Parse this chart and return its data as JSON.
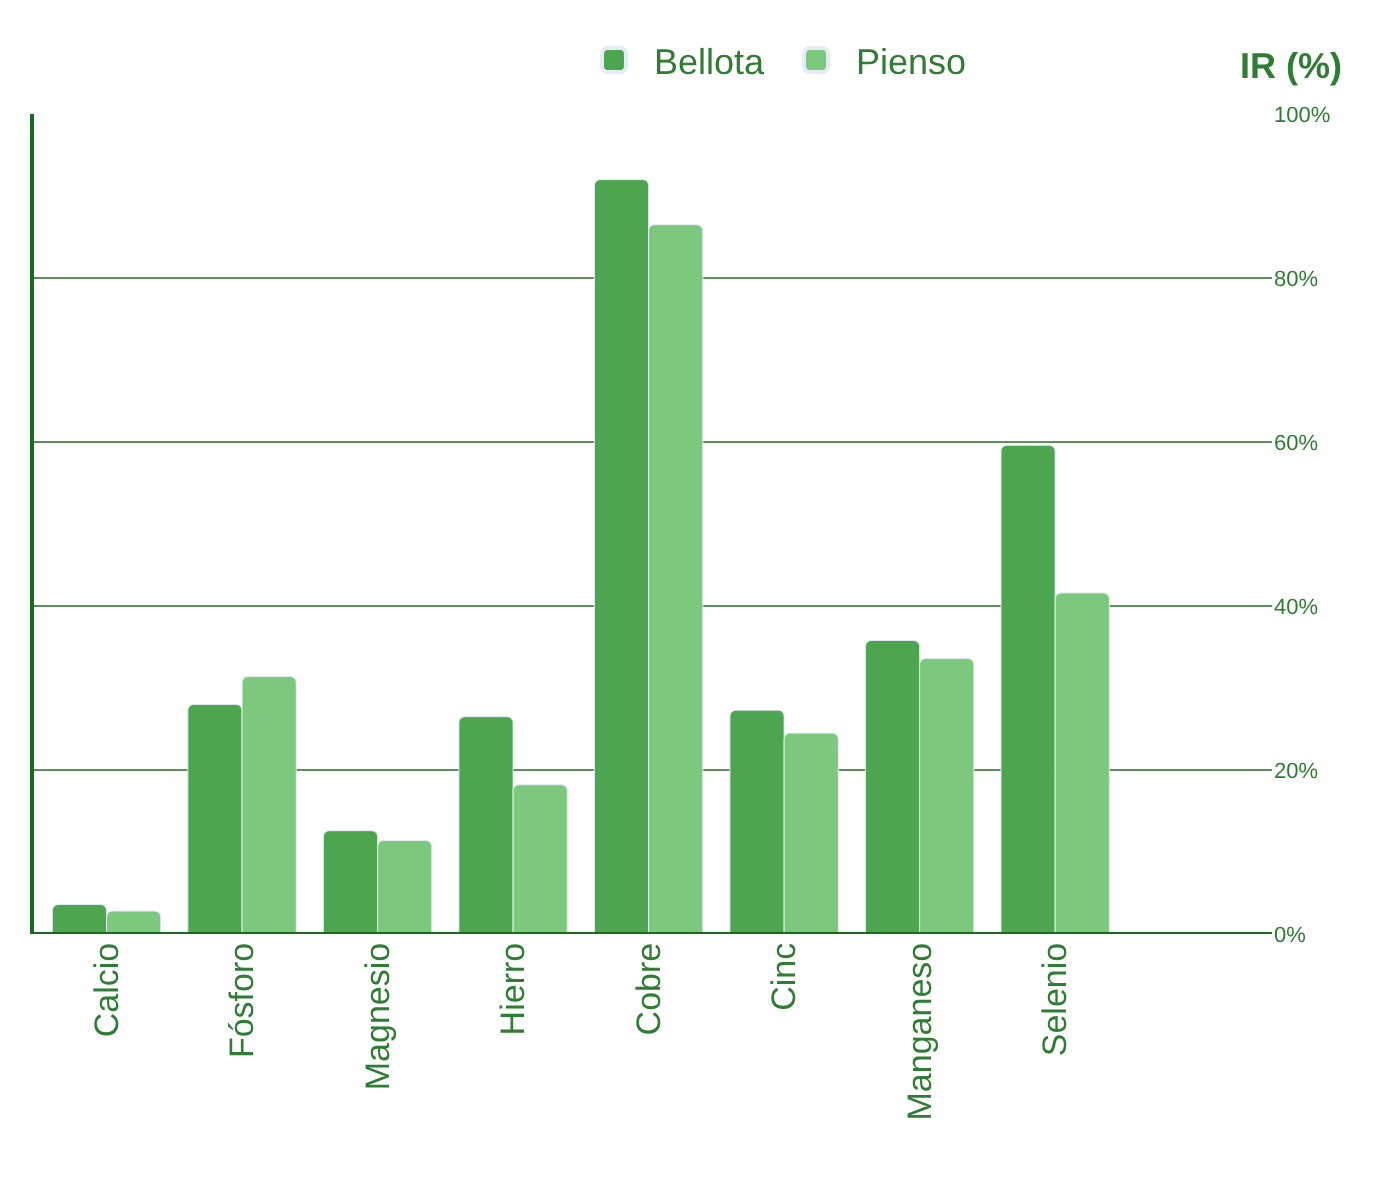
{
  "chart_data": {
    "type": "bar",
    "ylabel": "IR (%)",
    "categories": [
      "Calcio",
      "Fósforo",
      "Magnesio",
      "Hierro",
      "Cobre",
      "Cinc",
      "Manganeso",
      "Selenio"
    ],
    "series": [
      {
        "name": "Bellota",
        "color": "#4ea54f",
        "values": [
          3.6,
          28,
          12.6,
          26.5,
          92,
          27.3,
          35.8,
          59.6
        ]
      },
      {
        "name": "Pienso",
        "color": "#7cc87c",
        "values": [
          2.8,
          31.4,
          11.4,
          18.2,
          86.5,
          24.5,
          33.6,
          41.6
        ]
      }
    ],
    "ylim": [
      0,
      100
    ],
    "yticks": [
      {
        "value": 0,
        "label": "0%"
      },
      {
        "value": 20,
        "label": "20%"
      },
      {
        "value": 40,
        "label": "40%"
      },
      {
        "value": 60,
        "label": "60%"
      },
      {
        "value": 80,
        "label": "80%"
      },
      {
        "value": 100,
        "label": "100%"
      }
    ],
    "grid": "y",
    "legend": "top"
  }
}
